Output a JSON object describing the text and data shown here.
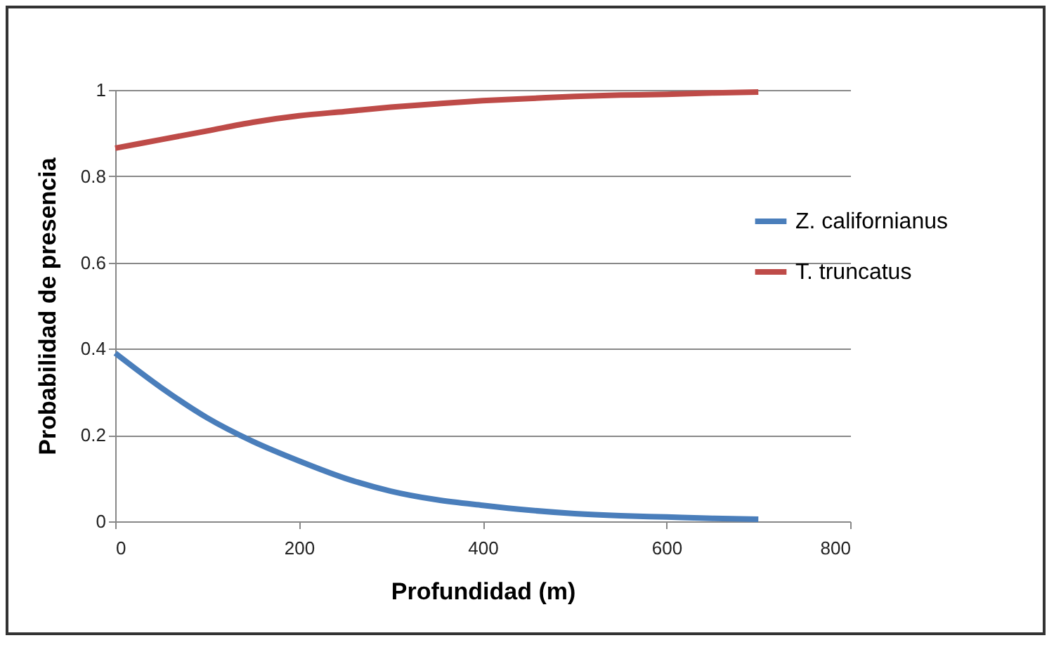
{
  "chart_data": {
    "type": "line",
    "xlabel": "Profundidad (m)",
    "ylabel": "Probabilidad de presencia",
    "x": [
      0,
      50,
      100,
      150,
      200,
      250,
      300,
      350,
      400,
      450,
      500,
      550,
      600,
      650,
      700
    ],
    "series": [
      {
        "name": "Z. californianus",
        "color": "#4a7ebb",
        "values": [
          0.39,
          0.31,
          0.24,
          0.185,
          0.14,
          0.1,
          0.07,
          0.05,
          0.037,
          0.026,
          0.018,
          0.013,
          0.01,
          0.007,
          0.005
        ]
      },
      {
        "name": "T. truncatus",
        "color": "#be4b48",
        "values": [
          0.865,
          0.885,
          0.905,
          0.925,
          0.94,
          0.95,
          0.96,
          0.968,
          0.975,
          0.98,
          0.985,
          0.988,
          0.99,
          0.993,
          0.995
        ]
      }
    ],
    "xlim": [
      0,
      800
    ],
    "xticks": [
      0,
      200,
      400,
      600,
      800
    ],
    "ylim": [
      0,
      1
    ],
    "yticks": [
      0,
      0.2,
      0.4,
      0.6,
      0.8,
      1
    ],
    "grid": "y",
    "legend": "right",
    "marker": "none",
    "line_style": "solid"
  }
}
